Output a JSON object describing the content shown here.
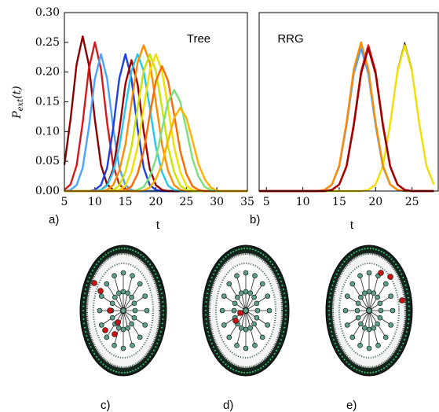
{
  "chart_data": [
    {
      "type": "line",
      "annotation": "Tree",
      "x_label": "t",
      "panel": "a)",
      "y_label": {
        "text": "P",
        "subscript": "ext",
        "suffix": "(t)"
      },
      "x": [
        5,
        6,
        7,
        8,
        9,
        10,
        11,
        12,
        13,
        14,
        15,
        16,
        17,
        18,
        19,
        20,
        21,
        22,
        23,
        24,
        25,
        26,
        27,
        28,
        29,
        30,
        31,
        32,
        33,
        34,
        35
      ],
      "xlim": [
        5,
        35
      ],
      "xticks": [
        5,
        10,
        15,
        20,
        25,
        30,
        35
      ],
      "ylim": [
        0,
        0.3
      ],
      "yticks": [
        {
          "value": 0,
          "label": "0.00"
        },
        0.05,
        {
          "value": 0.1,
          "label": "0.10"
        },
        0.15,
        {
          "value": 0.2,
          "label": "0.20"
        },
        0.25,
        {
          "value": 0.3,
          "label": "0.30"
        }
      ],
      "series": [
        {
          "color": "#8b0000",
          "values": [
            0.044,
            0.12,
            0.213,
            0.26,
            0.213,
            0.12,
            0.044,
            0.011,
            0.002,
            0,
            0,
            0,
            0,
            0,
            0,
            0,
            0,
            0,
            0,
            0,
            0,
            0,
            0,
            0,
            0,
            0,
            0,
            0,
            0,
            0,
            0
          ]
        },
        {
          "color": "#d7191c",
          "values": [
            0.002,
            0.011,
            0.043,
            0.115,
            0.205,
            0.25,
            0.205,
            0.115,
            0.043,
            0.011,
            0.002,
            0,
            0,
            0,
            0,
            0,
            0,
            0,
            0,
            0,
            0,
            0,
            0,
            0,
            0,
            0,
            0,
            0,
            0,
            0,
            0
          ]
        },
        {
          "color": "#4aa3ff",
          "values": [
            0,
            0.002,
            0.01,
            0.039,
            0.106,
            0.189,
            0.23,
            0.189,
            0.106,
            0.039,
            0.01,
            0.002,
            0,
            0,
            0,
            0,
            0,
            0,
            0,
            0,
            0,
            0,
            0,
            0,
            0,
            0,
            0,
            0,
            0,
            0,
            0
          ]
        },
        {
          "color": "#1f3fe0",
          "values": [
            0,
            0,
            0,
            0,
            0,
            0.002,
            0.01,
            0.039,
            0.106,
            0.189,
            0.23,
            0.189,
            0.106,
            0.039,
            0.01,
            0.002,
            0,
            0,
            0,
            0,
            0,
            0,
            0,
            0,
            0,
            0,
            0,
            0,
            0,
            0,
            0
          ]
        },
        {
          "color": "#a00000",
          "values": [
            0,
            0,
            0,
            0,
            0,
            0,
            0.002,
            0.01,
            0.037,
            0.101,
            0.18,
            0.22,
            0.18,
            0.101,
            0.037,
            0.01,
            0.002,
            0,
            0,
            0,
            0,
            0,
            0,
            0,
            0,
            0,
            0,
            0,
            0,
            0,
            0
          ]
        },
        {
          "color": "#22c8f0",
          "values": [
            0,
            0,
            0,
            0,
            0,
            0,
            0.002,
            0.009,
            0.032,
            0.074,
            0.14,
            0.202,
            0.23,
            0.202,
            0.14,
            0.074,
            0.032,
            0.009,
            0.002,
            0,
            0,
            0,
            0,
            0,
            0,
            0,
            0,
            0,
            0,
            0,
            0
          ]
        },
        {
          "color": "#ff8c00",
          "values": [
            0,
            0,
            0,
            0,
            0,
            0,
            0,
            0.002,
            0.01,
            0.034,
            0.078,
            0.149,
            0.216,
            0.245,
            0.216,
            0.149,
            0.078,
            0.034,
            0.01,
            0.002,
            0,
            0,
            0,
            0,
            0,
            0,
            0,
            0,
            0,
            0,
            0
          ]
        },
        {
          "color": "#c8e600",
          "values": [
            0,
            0,
            0,
            0,
            0,
            0,
            0,
            0,
            0.002,
            0.009,
            0.032,
            0.074,
            0.14,
            0.202,
            0.23,
            0.202,
            0.14,
            0.074,
            0.032,
            0.009,
            0.002,
            0,
            0,
            0,
            0,
            0,
            0,
            0,
            0,
            0,
            0
          ]
        },
        {
          "color": "#f0e000",
          "values": [
            0,
            0,
            0,
            0,
            0,
            0,
            0,
            0,
            0,
            0.002,
            0.009,
            0.032,
            0.074,
            0.14,
            0.202,
            0.23,
            0.202,
            0.14,
            0.074,
            0.032,
            0.009,
            0.002,
            0,
            0,
            0,
            0,
            0,
            0,
            0,
            0,
            0
          ]
        },
        {
          "color": "#ff6a00",
          "values": [
            0,
            0,
            0,
            0,
            0,
            0,
            0,
            0,
            0,
            0,
            0.002,
            0.008,
            0.029,
            0.067,
            0.128,
            0.185,
            0.21,
            0.185,
            0.128,
            0.067,
            0.029,
            0.008,
            0.002,
            0,
            0,
            0,
            0,
            0,
            0,
            0,
            0
          ]
        },
        {
          "color": "#7be07b",
          "values": [
            0,
            0,
            0,
            0,
            0,
            0,
            0,
            0,
            0,
            0,
            0,
            0,
            0.002,
            0.007,
            0.024,
            0.054,
            0.104,
            0.15,
            0.17,
            0.15,
            0.104,
            0.054,
            0.024,
            0.007,
            0.002,
            0,
            0,
            0,
            0,
            0,
            0
          ]
        },
        {
          "color": "#ffb000",
          "values": [
            0,
            0,
            0,
            0,
            0,
            0,
            0,
            0,
            0,
            0,
            0,
            0,
            0,
            0.001,
            0.006,
            0.02,
            0.045,
            0.085,
            0.123,
            0.14,
            0.123,
            0.085,
            0.045,
            0.02,
            0.006,
            0.001,
            0,
            0,
            0,
            0,
            0
          ]
        }
      ]
    },
    {
      "type": "line",
      "annotation": "RRG",
      "x_label": "t",
      "panel": "b)",
      "x": [
        4,
        5,
        6,
        7,
        8,
        9,
        10,
        11,
        12,
        13,
        14,
        15,
        16,
        17,
        18,
        19,
        20,
        21,
        22,
        23,
        24,
        25,
        26,
        27,
        28
      ],
      "xlim": [
        4,
        28.6
      ],
      "xticks": [
        5,
        10,
        15,
        20,
        25
      ],
      "ylim": [
        0,
        0.3
      ],
      "series": [
        {
          "color": "#000000",
          "values": [
            0,
            0,
            0,
            0,
            0,
            0,
            0,
            0,
            0,
            0,
            0,
            0,
            0,
            0,
            0,
            0.002,
            0.011,
            0.043,
            0.115,
            0.205,
            0.25,
            0.205,
            0.115,
            0.043,
            0.011
          ]
        },
        {
          "color": "#f0e000",
          "values": [
            0,
            0,
            0,
            0,
            0,
            0,
            0,
            0,
            0,
            0,
            0,
            0,
            0,
            0,
            0,
            0.002,
            0.011,
            0.042,
            0.113,
            0.201,
            0.245,
            0.201,
            0.113,
            0.042,
            0.011
          ]
        },
        {
          "color": "#4aa3ff",
          "values": [
            0,
            0,
            0,
            0,
            0,
            0,
            0,
            0,
            0,
            0.002,
            0.011,
            0.041,
            0.11,
            0.197,
            0.24,
            0.197,
            0.11,
            0.041,
            0.011,
            0.002,
            0,
            0,
            0,
            0,
            0
          ]
        },
        {
          "color": "#ff8c00",
          "values": [
            0,
            0,
            0,
            0,
            0,
            0,
            0,
            0,
            0,
            0.002,
            0.011,
            0.043,
            0.115,
            0.205,
            0.25,
            0.205,
            0.115,
            0.043,
            0.011,
            0.002,
            0,
            0,
            0,
            0,
            0
          ]
        },
        {
          "color": "#e02010",
          "values": [
            0,
            0,
            0,
            0,
            0,
            0,
            0,
            0,
            0,
            0,
            0.002,
            0.011,
            0.042,
            0.113,
            0.201,
            0.245,
            0.201,
            0.113,
            0.042,
            0.011,
            0.002,
            0,
            0,
            0,
            0
          ]
        },
        {
          "color": "#a00000",
          "values": [
            0,
            0,
            0,
            0,
            0,
            0,
            0,
            0,
            0,
            0,
            0.002,
            0.011,
            0.041,
            0.11,
            0.197,
            0.24,
            0.197,
            0.11,
            0.041,
            0.011,
            0.002,
            0,
            0,
            0,
            0
          ]
        }
      ]
    }
  ],
  "panel_labels": [
    "c)",
    "d)",
    "e)"
  ]
}
